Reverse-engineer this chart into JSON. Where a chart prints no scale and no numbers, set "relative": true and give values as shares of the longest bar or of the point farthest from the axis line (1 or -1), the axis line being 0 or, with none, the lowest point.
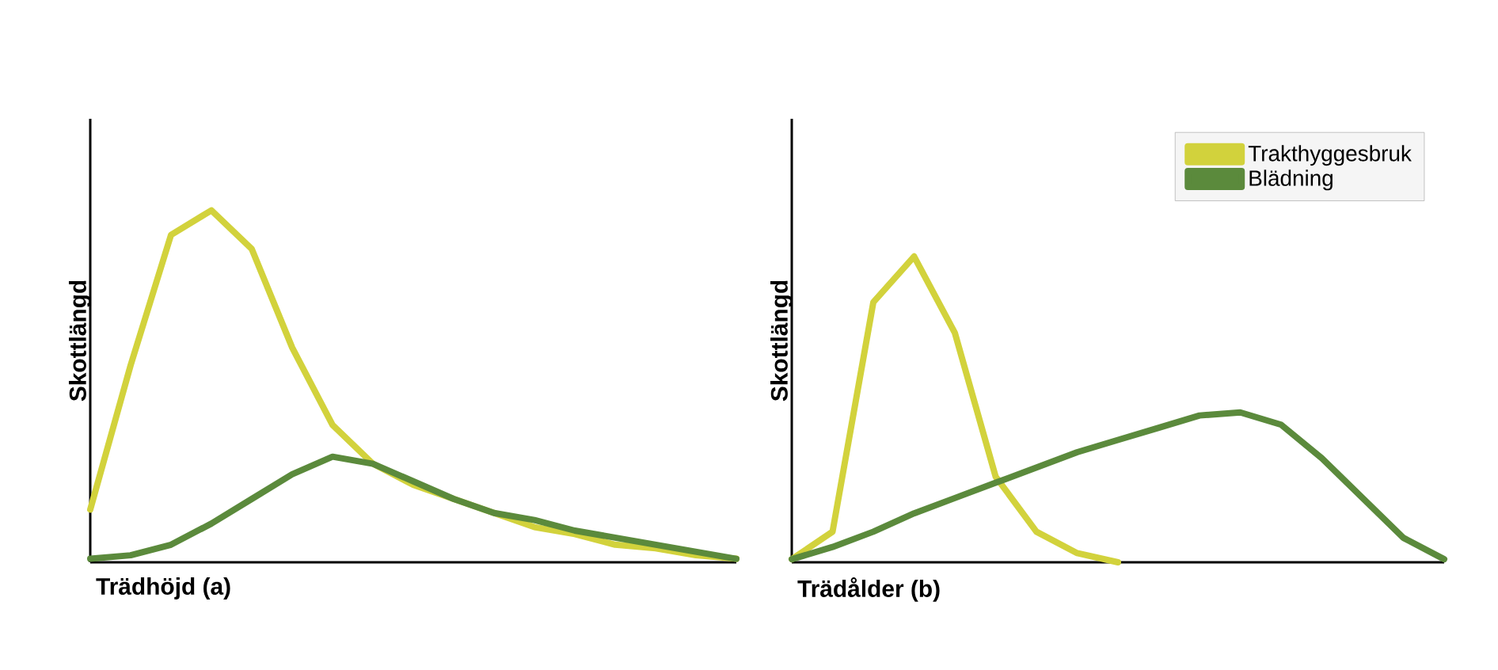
{
  "chart_data": [
    {
      "type": "line",
      "relative": true,
      "tick_labels": false,
      "legend": false,
      "xlabel": "Trädhöjd (a)",
      "ylabel": "Skottlängd",
      "categories": [
        null,
        null,
        null,
        null,
        null,
        null,
        null,
        null,
        null,
        null,
        null,
        null,
        null,
        null,
        null,
        null,
        null
      ],
      "series": [
        {
          "color": "#d2d23c",
          "values": [
            0.15,
            0.56,
            0.93,
            1.0,
            0.89,
            0.61,
            0.39,
            0.28,
            0.22,
            0.18,
            0.14,
            0.1,
            0.08,
            0.05,
            0.04,
            0.02,
            0.01
          ]
        },
        {
          "color": "#5b8a3c",
          "values": [
            0.01,
            0.02,
            0.05,
            0.11,
            0.18,
            0.25,
            0.3,
            0.28,
            0.23,
            0.18,
            0.14,
            0.12,
            0.09,
            0.07,
            0.05,
            0.03,
            0.01
          ]
        }
      ]
    },
    {
      "type": "line",
      "relative": true,
      "tick_labels": false,
      "legend": "top right",
      "xlabel": "Trädålder (b)",
      "ylabel": "Skottlängd",
      "categories": [
        null,
        null,
        null,
        null,
        null,
        null,
        null,
        null,
        null,
        null,
        null,
        null,
        null,
        null,
        null,
        null,
        null
      ],
      "series": [
        {
          "name": "Trakthyggesbruk",
          "color": "#d2d23c",
          "values": [
            0.01,
            0.1,
            0.85,
            1.0,
            0.75,
            0.28,
            0.1,
            0.03,
            0.0,
            null,
            null,
            null,
            null,
            null,
            null,
            null,
            null
          ]
        },
        {
          "name": "Blädning",
          "color": "#5b8a3c",
          "values": [
            0.01,
            0.05,
            0.1,
            0.16,
            0.21,
            0.26,
            0.31,
            0.36,
            0.4,
            0.44,
            0.48,
            0.49,
            0.45,
            0.34,
            0.21,
            0.08,
            0.01
          ]
        }
      ]
    }
  ]
}
